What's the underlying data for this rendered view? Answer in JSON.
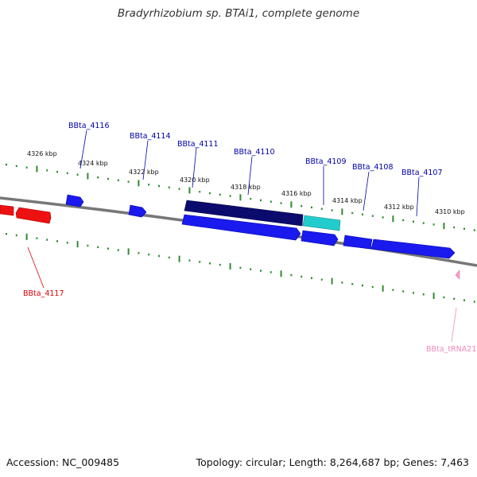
{
  "title": "Bradyrhizobium sp. BTAi1, complete genome",
  "footer": {
    "accession": "Accession: NC_009485",
    "summary": "Topology: circular; Length: 8,264,687 bp; Genes: 7,463"
  },
  "colors": {
    "background": "#ffffff",
    "backbone": "#777777",
    "tick": "#2e8b2e",
    "gene_forward": "#1a1aee",
    "gene_highlight": "#0b0b6e",
    "gene_cyan": "#22cccc",
    "gene_reverse": "#ee1111",
    "trna": "#f2a0c8",
    "label_blue": "#0000aa",
    "label_red": "#dd0000",
    "label_pink": "#ee88bb"
  },
  "scale_labels": [
    "4326 kbp",
    "4324 kbp",
    "4322 kbp",
    "4320 kbp",
    "4318 kbp",
    "4316 kbp",
    "4314 kbp",
    "4312 kbp",
    "4310 kbp"
  ],
  "gene_labels": [
    "BBta_4116",
    "BBta_4114",
    "BBta_4111",
    "BBta_4110",
    "BBta_4109",
    "BBta_4108",
    "BBta_4107",
    "BBta_4117",
    "BBta_tRNA21"
  ]
}
